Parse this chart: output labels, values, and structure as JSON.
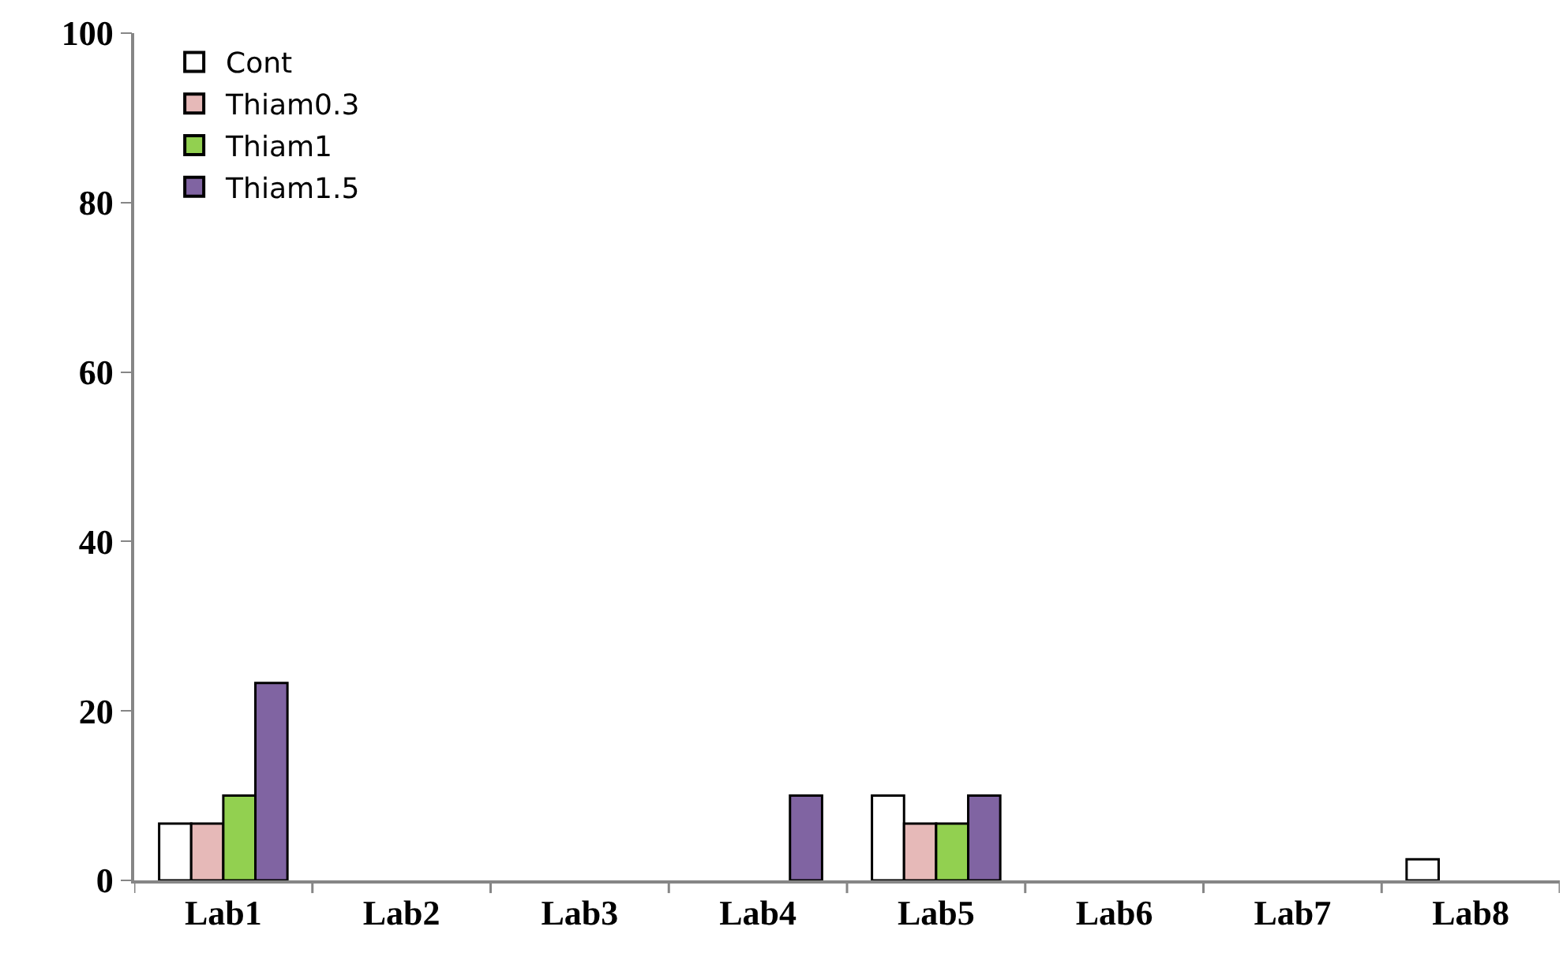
{
  "chart_data": {
    "type": "bar",
    "categories": [
      "Lab1",
      "Lab2",
      "Lab3",
      "Lab4",
      "Lab5",
      "Lab6",
      "Lab7",
      "Lab8"
    ],
    "series": [
      {
        "name": "Cont",
        "color": "#ffffff",
        "values": [
          6.7,
          0,
          0,
          0,
          10,
          0,
          0,
          2.5
        ]
      },
      {
        "name": "Thiam0.3",
        "color": "#e6b9b8",
        "values": [
          6.7,
          0,
          0,
          0,
          6.7,
          0,
          0,
          0
        ]
      },
      {
        "name": "Thiam1",
        "color": "#92d050",
        "values": [
          10,
          0,
          0,
          0,
          6.7,
          0,
          0,
          0
        ]
      },
      {
        "name": "Thiam1.5",
        "color": "#8064a2",
        "values": [
          23.3,
          0,
          0,
          10,
          10,
          0,
          0,
          0
        ]
      }
    ],
    "ylim": [
      0,
      100
    ],
    "yticks": [
      0,
      20,
      40,
      60,
      80,
      100
    ],
    "legend": "top left"
  }
}
